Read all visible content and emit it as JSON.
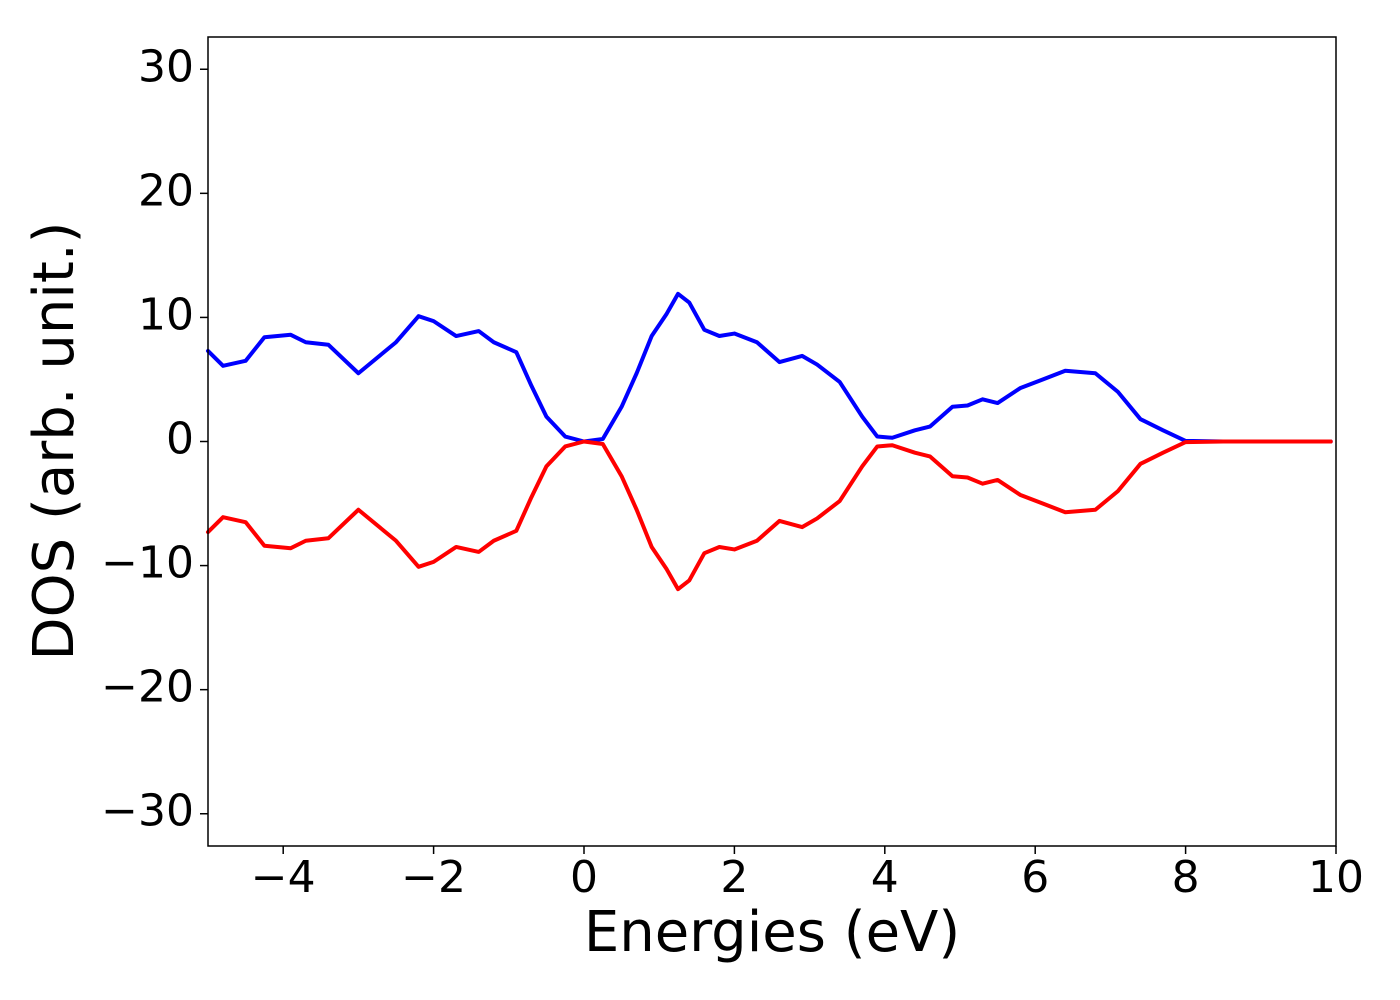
{
  "chart_data": {
    "type": "line",
    "xlabel": "Energies (eV)",
    "ylabel": "DOS (arb. unit.)",
    "x": [
      -5,
      -4.8,
      -4.5,
      -4.25,
      -3.9,
      -3.7,
      -3.4,
      -3.0,
      -2.7,
      -2.5,
      -2.2,
      -2.0,
      -1.7,
      -1.4,
      -1.2,
      -0.9,
      -0.7,
      -0.5,
      -0.25,
      0,
      0.25,
      0.5,
      0.7,
      0.9,
      1.1,
      1.25,
      1.4,
      1.6,
      1.8,
      2.0,
      2.3,
      2.6,
      2.9,
      3.1,
      3.4,
      3.7,
      3.9,
      4.1,
      4.4,
      4.6,
      4.9,
      5.1,
      5.3,
      5.5,
      5.8,
      6.1,
      6.4,
      6.8,
      7.1,
      7.4,
      7.7,
      8.0,
      8.5,
      9.93
    ],
    "series": [
      {
        "color": "#0000ff",
        "values": [
          7.3,
          6.1,
          6.5,
          8.4,
          8.6,
          8.0,
          7.8,
          5.5,
          7.0,
          8.0,
          10.1,
          9.7,
          8.5,
          8.9,
          8.0,
          7.2,
          4.5,
          2.0,
          0.4,
          0,
          0.2,
          2.8,
          5.5,
          8.5,
          10.3,
          11.9,
          11.2,
          9.0,
          8.5,
          8.7,
          8.0,
          6.4,
          6.9,
          6.2,
          4.8,
          2.0,
          0.4,
          0.3,
          0.9,
          1.2,
          2.8,
          2.9,
          3.4,
          3.1,
          4.3,
          5.0,
          5.7,
          5.5,
          4.0,
          1.8,
          0.9,
          0.05,
          0,
          0
        ]
      },
      {
        "color": "#ff0000",
        "values": [
          -7.3,
          -6.1,
          -6.5,
          -8.4,
          -8.6,
          -8.0,
          -7.8,
          -5.5,
          -7.0,
          -8.0,
          -10.1,
          -9.7,
          -8.5,
          -8.9,
          -8.0,
          -7.2,
          -4.5,
          -2.0,
          -0.4,
          0,
          -0.2,
          -2.8,
          -5.5,
          -8.5,
          -10.3,
          -11.9,
          -11.2,
          -9.0,
          -8.5,
          -8.7,
          -8.0,
          -6.4,
          -6.9,
          -6.2,
          -4.8,
          -2.0,
          -0.4,
          -0.3,
          -0.9,
          -1.2,
          -2.8,
          -2.9,
          -3.4,
          -3.1,
          -4.3,
          -5.0,
          -5.7,
          -5.5,
          -4.0,
          -1.8,
          -0.9,
          -0.05,
          0,
          0
        ]
      }
    ],
    "xlim": [
      -5,
      10
    ],
    "xticks": [
      {
        "value": -4,
        "label": "−4"
      },
      {
        "value": -2,
        "label": "−2"
      },
      0,
      2,
      4,
      6,
      8,
      10
    ],
    "ylim": [
      -32.6,
      32.6
    ],
    "yticks": [
      {
        "value": -30,
        "label": "−30"
      },
      {
        "value": -20,
        "label": "−20"
      },
      {
        "value": -10,
        "label": "−10"
      },
      0,
      10,
      20,
      30
    ],
    "grid": false
  }
}
